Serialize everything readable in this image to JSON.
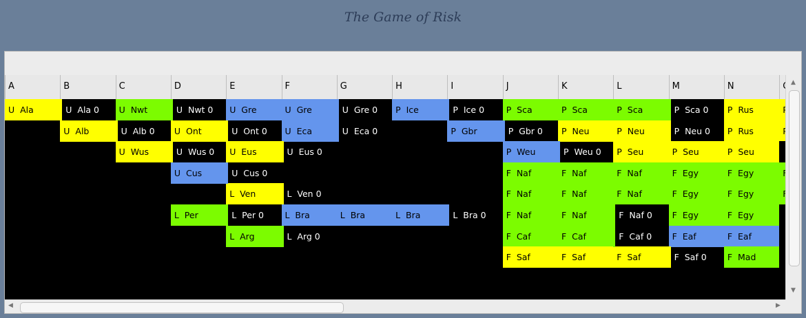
{
  "title": "The Game of Risk",
  "colors": {
    "yellow": "#ffff00",
    "blue": "#6495ed",
    "green": "#7cfc00",
    "black": "#000000"
  },
  "columns": [
    "A",
    "B",
    "C",
    "D",
    "E",
    "F",
    "G",
    "H",
    "I",
    "J",
    "K",
    "L",
    "M",
    "N",
    "O"
  ],
  "rows": [
    [
      [
        "U  Ala",
        "yellow"
      ],
      [
        "U  Ala 0",
        "black"
      ],
      [
        "U  Nwt",
        "green"
      ],
      [
        "U  Nwt 0",
        "black"
      ],
      [
        "U  Gre",
        "blue"
      ],
      [
        "U  Gre",
        "blue"
      ],
      [
        "U  Gre 0",
        "black"
      ],
      [
        "P  Ice",
        "blue"
      ],
      [
        "P  Ice 0",
        "black"
      ],
      [
        "P  Sca",
        "green"
      ],
      [
        "P  Sca",
        "green"
      ],
      [
        "P  Sca",
        "green"
      ],
      [
        "P  Sca 0",
        "black"
      ],
      [
        "P  Rus",
        "yellow"
      ],
      [
        "P",
        "yellow"
      ]
    ],
    [
      [
        "",
        ""
      ],
      [
        "U  Alb",
        "yellow"
      ],
      [
        "U  Alb 0",
        "black"
      ],
      [
        "U  Ont",
        "yellow"
      ],
      [
        "U  Ont 0",
        "black"
      ],
      [
        "U  Eca",
        "blue"
      ],
      [
        "U  Eca 0",
        "black"
      ],
      [
        "",
        ""
      ],
      [
        "P  Gbr",
        "blue"
      ],
      [
        "P  Gbr 0",
        "black"
      ],
      [
        "P  Neu",
        "yellow"
      ],
      [
        "P  Neu",
        "yellow"
      ],
      [
        "P  Neu 0",
        "black"
      ],
      [
        "P  Rus",
        "yellow"
      ],
      [
        "P",
        "yellow"
      ]
    ],
    [
      [
        "",
        ""
      ],
      [
        "",
        ""
      ],
      [
        "U  Wus",
        "yellow"
      ],
      [
        "U  Wus 0",
        "black"
      ],
      [
        "U  Eus",
        "yellow"
      ],
      [
        "U  Eus 0",
        "black"
      ],
      [
        "",
        ""
      ],
      [
        "",
        ""
      ],
      [
        "",
        ""
      ],
      [
        "P  Weu",
        "blue"
      ],
      [
        "P  Weu 0",
        "black"
      ],
      [
        "P  Seu",
        "yellow"
      ],
      [
        "P  Seu",
        "yellow"
      ],
      [
        "P  Seu",
        "yellow"
      ],
      [
        "",
        "black"
      ]
    ],
    [
      [
        "",
        ""
      ],
      [
        "",
        ""
      ],
      [
        "",
        ""
      ],
      [
        "U  Cus",
        "blue"
      ],
      [
        "U  Cus 0",
        "black"
      ],
      [
        "",
        ""
      ],
      [
        "",
        ""
      ],
      [
        "",
        ""
      ],
      [
        "",
        ""
      ],
      [
        "F  Naf",
        "green"
      ],
      [
        "F  Naf",
        "green"
      ],
      [
        "F  Naf",
        "green"
      ],
      [
        "F  Egy",
        "green"
      ],
      [
        "F  Egy",
        "green"
      ],
      [
        "F",
        "green"
      ]
    ],
    [
      [
        "",
        ""
      ],
      [
        "",
        ""
      ],
      [
        "",
        ""
      ],
      [
        "",
        ""
      ],
      [
        "L  Ven",
        "yellow"
      ],
      [
        "L  Ven 0",
        "black"
      ],
      [
        "",
        ""
      ],
      [
        "",
        ""
      ],
      [
        "",
        ""
      ],
      [
        "F  Naf",
        "green"
      ],
      [
        "F  Naf",
        "green"
      ],
      [
        "F  Naf",
        "green"
      ],
      [
        "F  Egy",
        "green"
      ],
      [
        "F  Egy",
        "green"
      ],
      [
        "F",
        "green"
      ]
    ],
    [
      [
        "",
        ""
      ],
      [
        "",
        ""
      ],
      [
        "",
        ""
      ],
      [
        "L  Per",
        "green"
      ],
      [
        "L  Per 0",
        "black"
      ],
      [
        "L  Bra",
        "blue"
      ],
      [
        "L  Bra",
        "blue"
      ],
      [
        "L  Bra",
        "blue"
      ],
      [
        "L  Bra 0",
        "black"
      ],
      [
        "F  Naf",
        "green"
      ],
      [
        "F  Naf",
        "green"
      ],
      [
        "F  Naf 0",
        "black"
      ],
      [
        "F  Egy",
        "green"
      ],
      [
        "F  Egy",
        "green"
      ],
      [
        "",
        "black"
      ]
    ],
    [
      [
        "",
        ""
      ],
      [
        "",
        ""
      ],
      [
        "",
        ""
      ],
      [
        "",
        ""
      ],
      [
        "L  Arg",
        "green"
      ],
      [
        "L  Arg 0",
        "black"
      ],
      [
        "",
        ""
      ],
      [
        "",
        ""
      ],
      [
        "",
        ""
      ],
      [
        "F  Caf",
        "green"
      ],
      [
        "F  Caf",
        "green"
      ],
      [
        "F  Caf 0",
        "black"
      ],
      [
        "F  Eaf",
        "blue"
      ],
      [
        "F  Eaf",
        "blue"
      ],
      [
        "",
        "black"
      ]
    ],
    [
      [
        "",
        ""
      ],
      [
        "",
        ""
      ],
      [
        "",
        ""
      ],
      [
        "",
        ""
      ],
      [
        "",
        ""
      ],
      [
        "",
        ""
      ],
      [
        "",
        ""
      ],
      [
        "",
        ""
      ],
      [
        "",
        ""
      ],
      [
        "F  Saf",
        "yellow"
      ],
      [
        "F  Saf",
        "yellow"
      ],
      [
        "F  Saf",
        "yellow"
      ],
      [
        "F  Saf 0",
        "black"
      ],
      [
        "F  Mad",
        "green"
      ],
      [
        "",
        "black"
      ]
    ]
  ],
  "corner_markers": [
    [
      1,
      0,
      "yellow"
    ],
    [
      3,
      0,
      "green"
    ],
    [
      6,
      0,
      "blue"
    ],
    [
      8,
      0,
      "blue"
    ],
    [
      12,
      0,
      "green"
    ],
    [
      2,
      1,
      "yellow"
    ],
    [
      4,
      1,
      "yellow"
    ],
    [
      6,
      1,
      "blue"
    ],
    [
      9,
      1,
      "blue"
    ],
    [
      12,
      1,
      "yellow"
    ],
    [
      3,
      2,
      "yellow"
    ],
    [
      5,
      2,
      "yellow"
    ],
    [
      10,
      2,
      "blue"
    ],
    [
      4,
      3,
      "blue"
    ],
    [
      5,
      4,
      "yellow"
    ],
    [
      4,
      5,
      "green"
    ],
    [
      8,
      5,
      "blue"
    ],
    [
      11,
      5,
      "green"
    ],
    [
      5,
      6,
      "green"
    ],
    [
      11,
      6,
      "green"
    ],
    [
      12,
      7,
      "yellow"
    ]
  ]
}
